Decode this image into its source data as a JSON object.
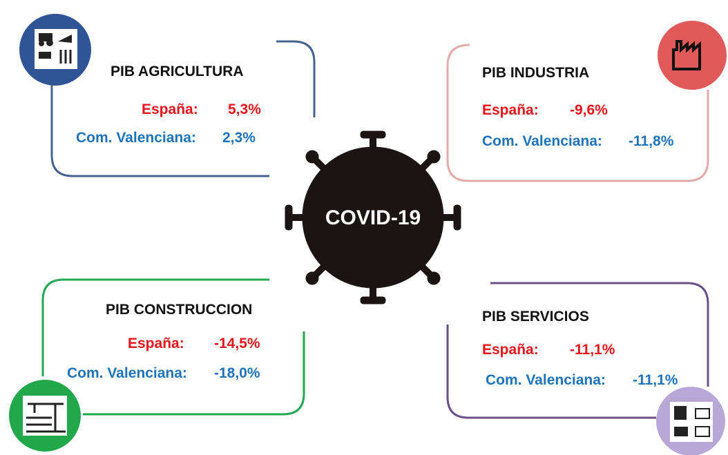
{
  "center": {
    "label": "COVID-19"
  },
  "panels": [
    {
      "title": "PIB AGRICULTURA",
      "rows": [
        {
          "label": "España:",
          "value": "5,3%"
        },
        {
          "label": "Com. Valenciana:",
          "value": "2,3%"
        }
      ]
    },
    {
      "title": "PIB INDUSTRIA",
      "rows": [
        {
          "label": "España:",
          "value": "-9,6%"
        },
        {
          "label": "Com. Valenciana:",
          "value": "-11,8%"
        }
      ]
    },
    {
      "title": "PIB CONSTRUCCION",
      "rows": [
        {
          "label": "España:",
          "value": "-14,5%"
        },
        {
          "label": "Com. Valenciana:",
          "value": "-18,0%"
        }
      ]
    },
    {
      "title": "PIB SERVICIOS",
      "rows": [
        {
          "label": "España:",
          "value": "-11,1%"
        },
        {
          "label": "Com. Valenciana:",
          "value": "-11,1%"
        }
      ]
    }
  ]
}
